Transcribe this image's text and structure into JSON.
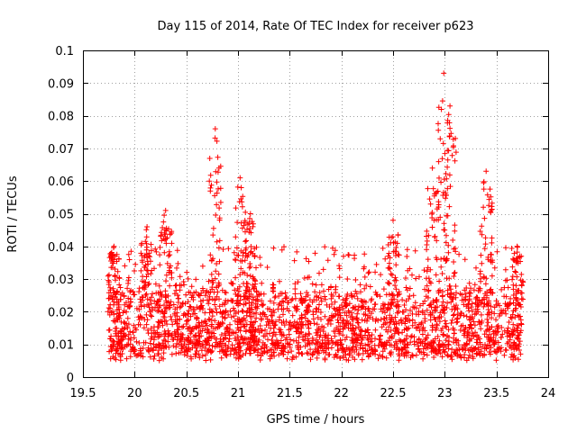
{
  "chart_data": {
    "type": "scatter",
    "title": "Day 115 of 2014, Rate Of TEC Index for receiver p623",
    "xlabel": "GPS time / hours",
    "ylabel": "ROTI / TECUs",
    "xlim": [
      19.5,
      24
    ],
    "ylim": [
      0,
      0.1
    ],
    "x_ticks": [
      19.5,
      20,
      20.5,
      21,
      21.5,
      22,
      22.5,
      23,
      23.5,
      24
    ],
    "x_tick_labels": [
      "19.5",
      "20",
      "20.5",
      "21",
      "21.5",
      "22",
      "22.5",
      "23",
      "23.5",
      "24"
    ],
    "y_ticks": [
      0,
      0.01,
      0.02,
      0.03,
      0.04,
      0.05,
      0.06,
      0.07,
      0.08,
      0.09,
      0.1
    ],
    "y_tick_labels": [
      "0",
      "0.01",
      "0.02",
      "0.03",
      "0.04",
      "0.05",
      "0.06",
      "0.07",
      "0.08",
      "0.09",
      "0.1"
    ],
    "grid": true,
    "marker": "+",
    "marker_color": "#ff0000",
    "series": [
      {
        "name": "ROTI",
        "x_range": [
          19.75,
          23.75
        ],
        "count": 2400,
        "typical_band": [
          0.005,
          0.03
        ],
        "peaks": [
          {
            "x": 19.8,
            "y": 0.04
          },
          {
            "x": 20.12,
            "y": 0.046
          },
          {
            "x": 20.3,
            "y": 0.051
          },
          {
            "x": 20.78,
            "y": 0.076
          },
          {
            "x": 21.02,
            "y": 0.061
          },
          {
            "x": 21.12,
            "y": 0.05
          },
          {
            "x": 22.5,
            "y": 0.048
          },
          {
            "x": 22.88,
            "y": 0.064
          },
          {
            "x": 22.99,
            "y": 0.093
          },
          {
            "x": 23.05,
            "y": 0.083
          },
          {
            "x": 23.4,
            "y": 0.063
          },
          {
            "x": 23.7,
            "y": 0.04
          }
        ]
      }
    ]
  }
}
